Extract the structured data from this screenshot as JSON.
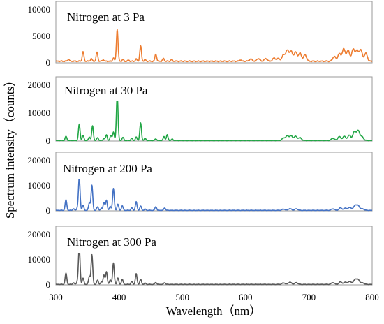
{
  "chart_data": {
    "type": "line",
    "ylabel": "Spectrum intensity（counts）",
    "xlabel": "Wavelength（nm）",
    "xlim": [
      300,
      800
    ],
    "xticks": [
      "300",
      "400",
      "500",
      "600",
      "700",
      "800"
    ],
    "grid": false,
    "panels": [
      {
        "title": "Nitrogen at 3 Pa",
        "color": "#ED7D31",
        "ylim": [
          0,
          10000
        ],
        "yticks": [
          "0",
          "5000",
          "10000"
        ],
        "base": 300,
        "peaks": [
          [
            320,
            400
          ],
          [
            343,
            1800
          ],
          [
            356,
            500
          ],
          [
            365,
            1700
          ],
          [
            375,
            300
          ],
          [
            391,
            600
          ],
          [
            397,
            6000
          ],
          [
            406,
            300
          ],
          [
            415,
            200
          ],
          [
            427,
            400
          ],
          [
            434,
            2900
          ],
          [
            441,
            300
          ],
          [
            458,
            1400
          ],
          [
            470,
            500
          ],
          [
            483,
            300
          ],
          [
            592,
            300
          ],
          [
            608,
            400
          ],
          [
            620,
            500
          ],
          [
            632,
            500
          ],
          [
            645,
            600
          ],
          [
            652,
            500
          ],
          [
            660,
            1200
          ],
          [
            666,
            2000
          ],
          [
            672,
            1800
          ],
          [
            679,
            1700
          ],
          [
            686,
            1500
          ],
          [
            694,
            1200
          ],
          [
            740,
            900
          ],
          [
            748,
            1400
          ],
          [
            755,
            2300
          ],
          [
            762,
            2000
          ],
          [
            770,
            2200
          ],
          [
            776,
            1900
          ],
          [
            782,
            2100
          ],
          [
            790,
            1500
          ]
        ]
      },
      {
        "title": "Nitrogen at 30 Pa",
        "color": "#21A645",
        "ylim": [
          0,
          20000
        ],
        "yticks": [
          "0",
          "10000",
          "20000"
        ],
        "base": 200,
        "peaks": [
          [
            316,
            1500
          ],
          [
            337,
            5800
          ],
          [
            343,
            1800
          ],
          [
            353,
            1200
          ],
          [
            358,
            5200
          ],
          [
            366,
            1000
          ],
          [
            376,
            700
          ],
          [
            380,
            2000
          ],
          [
            387,
            1800
          ],
          [
            391,
            3000
          ],
          [
            397,
            16500
          ],
          [
            406,
            1100
          ],
          [
            420,
            800
          ],
          [
            427,
            1200
          ],
          [
            434,
            6300
          ],
          [
            441,
            800
          ],
          [
            458,
            600
          ],
          [
            471,
            1400
          ],
          [
            476,
            2000
          ],
          [
            484,
            500
          ],
          [
            660,
            900
          ],
          [
            666,
            1600
          ],
          [
            672,
            1600
          ],
          [
            679,
            1500
          ],
          [
            686,
            1000
          ],
          [
            738,
            800
          ],
          [
            748,
            1400
          ],
          [
            756,
            1500
          ],
          [
            764,
            1900
          ],
          [
            772,
            3200
          ],
          [
            778,
            3500
          ],
          [
            784,
            1300
          ]
        ]
      },
      {
        "title": "Nitrogen at 200 Pa",
        "color": "#4472C4",
        "ylim": [
          0,
          20000
        ],
        "yticks": [
          "0",
          "10000",
          "20000"
        ],
        "base": 200,
        "peaks": [
          [
            316,
            4200
          ],
          [
            328,
            600
          ],
          [
            334,
            800
          ],
          [
            337,
            13000
          ],
          [
            343,
            2000
          ],
          [
            353,
            3000
          ],
          [
            357,
            10000
          ],
          [
            366,
            1400
          ],
          [
            372,
            800
          ],
          [
            376,
            3200
          ],
          [
            380,
            4000
          ],
          [
            386,
            1500
          ],
          [
            391,
            8700
          ],
          [
            398,
            2500
          ],
          [
            405,
            1800
          ],
          [
            420,
            1000
          ],
          [
            427,
            3400
          ],
          [
            434,
            1700
          ],
          [
            441,
            500
          ],
          [
            458,
            1500
          ],
          [
            472,
            1000
          ],
          [
            660,
            500
          ],
          [
            670,
            700
          ],
          [
            680,
            600
          ],
          [
            738,
            600
          ],
          [
            750,
            1000
          ],
          [
            758,
            900
          ],
          [
            765,
            1200
          ],
          [
            773,
            1900
          ],
          [
            778,
            1800
          ],
          [
            785,
            600
          ]
        ]
      },
      {
        "title": "Nitrogen at 300 Pa",
        "color": "#595959",
        "ylim": [
          0,
          20000
        ],
        "yticks": [
          "0",
          "10000",
          "20000"
        ],
        "base": 200,
        "peaks": [
          [
            316,
            4500
          ],
          [
            328,
            600
          ],
          [
            334,
            1000
          ],
          [
            337,
            15000
          ],
          [
            343,
            2500
          ],
          [
            353,
            3200
          ],
          [
            357,
            11800
          ],
          [
            366,
            1700
          ],
          [
            372,
            900
          ],
          [
            376,
            3800
          ],
          [
            380,
            5000
          ],
          [
            386,
            1700
          ],
          [
            391,
            8500
          ],
          [
            398,
            2600
          ],
          [
            405,
            2000
          ],
          [
            420,
            1100
          ],
          [
            427,
            4200
          ],
          [
            434,
            2000
          ],
          [
            441,
            500
          ],
          [
            458,
            800
          ],
          [
            472,
            700
          ],
          [
            660,
            600
          ],
          [
            670,
            900
          ],
          [
            680,
            700
          ],
          [
            738,
            700
          ],
          [
            750,
            1000
          ],
          [
            758,
            900
          ],
          [
            765,
            1200
          ],
          [
            773,
            1900
          ],
          [
            778,
            1800
          ],
          [
            785,
            600
          ]
        ]
      }
    ]
  }
}
